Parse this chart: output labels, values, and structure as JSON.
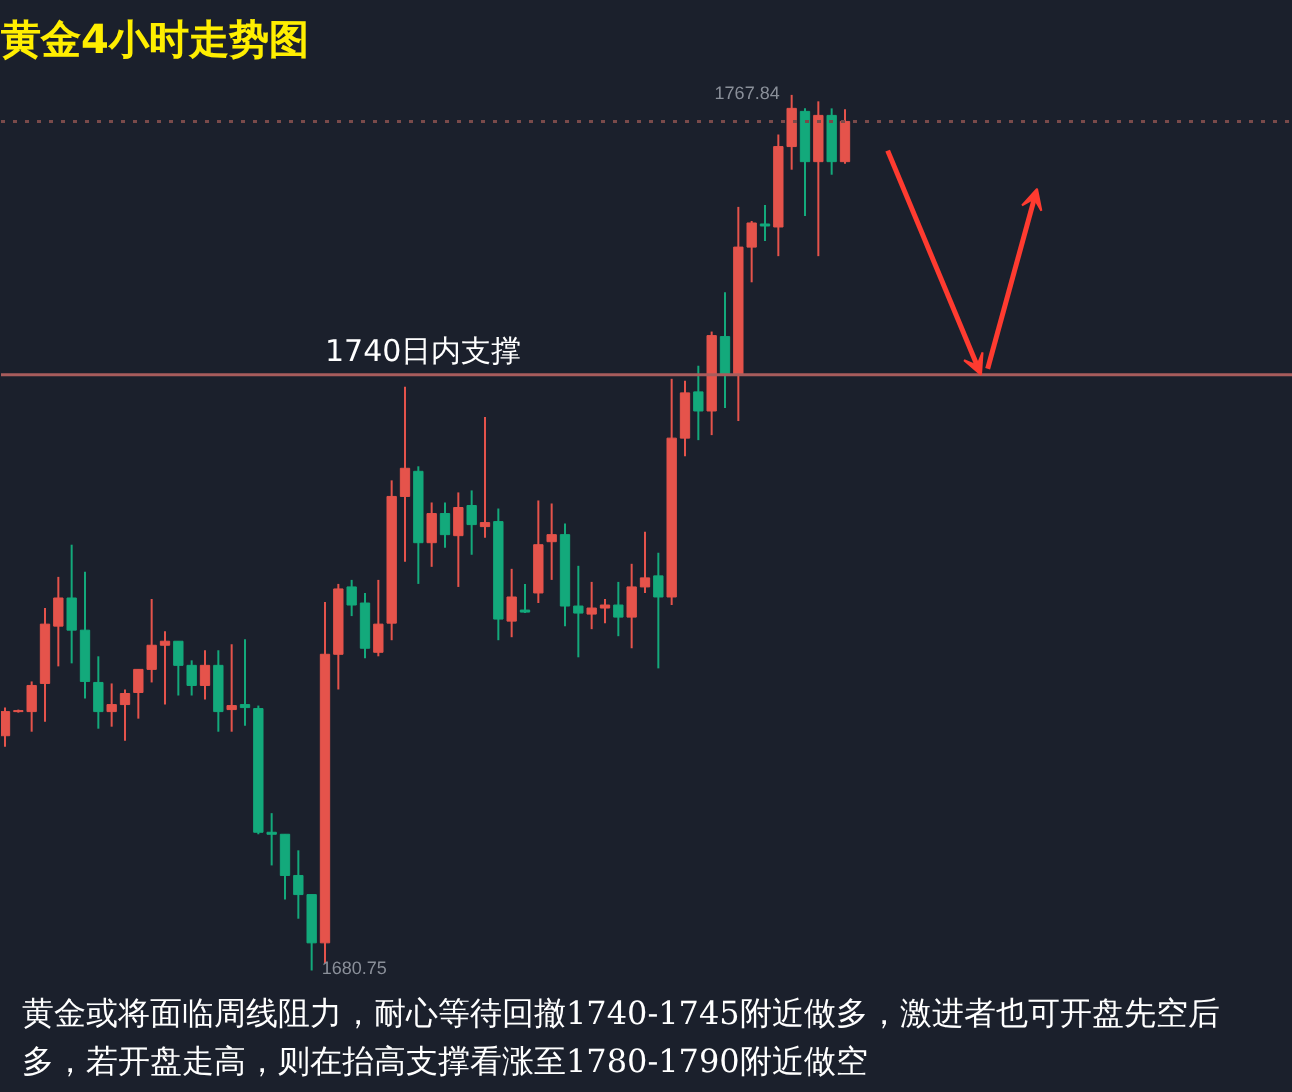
{
  "chart_data": {
    "type": "candlestick",
    "title": "黄金4小时走势图",
    "categories": [
      null,
      null,
      null,
      null,
      null,
      null,
      null,
      null,
      null,
      null,
      null,
      null,
      null,
      null,
      null,
      null,
      null,
      null,
      null,
      null,
      null,
      null,
      null,
      null,
      null,
      null,
      null,
      null,
      null,
      null,
      null,
      null,
      null,
      null,
      null,
      null,
      null,
      null,
      null,
      null,
      null,
      null,
      null,
      null,
      null,
      null,
      null,
      null,
      null,
      null,
      null,
      null,
      null,
      null,
      null,
      null,
      null,
      null,
      null,
      null,
      null,
      null,
      null,
      null
    ],
    "ohlc": [
      [
        1704.1,
        1706.9,
        1703.0,
        1706.5
      ],
      [
        1706.5,
        1706.7,
        1706.4,
        1706.6
      ],
      [
        1706.5,
        1709.5,
        1704.5,
        1709.1
      ],
      [
        1709.3,
        1716.8,
        1705.5,
        1715.2
      ],
      [
        1715.0,
        1719.9,
        1711.0,
        1717.8
      ],
      [
        1717.8,
        1723.1,
        1711.3,
        1714.6
      ],
      [
        1714.6,
        1720.4,
        1707.8,
        1709.5
      ],
      [
        1709.4,
        1712.0,
        1704.8,
        1706.5
      ],
      [
        1706.5,
        1709.3,
        1705.0,
        1707.2
      ],
      [
        1707.2,
        1708.7,
        1703.6,
        1708.3
      ],
      [
        1708.4,
        1710.7,
        1705.8,
        1710.7
      ],
      [
        1710.7,
        1717.7,
        1709.4,
        1713.1
      ],
      [
        1713.1,
        1714.5,
        1707.2,
        1713.5
      ],
      [
        1713.5,
        1713.5,
        1708.1,
        1711.1
      ],
      [
        1711.1,
        1711.6,
        1708.1,
        1709.1
      ],
      [
        1709.1,
        1712.6,
        1707.7,
        1711.1
      ],
      [
        1711.1,
        1712.6,
        1704.5,
        1706.5
      ],
      [
        1706.7,
        1713.2,
        1704.5,
        1707.1
      ],
      [
        1707.2,
        1713.7,
        1705.1,
        1706.9
      ],
      [
        1706.8,
        1707.1,
        1694.3,
        1694.5
      ],
      [
        1694.5,
        1696.4,
        1691.2,
        1694.3
      ],
      [
        1694.3,
        1694.3,
        1687.8,
        1690.2
      ],
      [
        1690.2,
        1692.7,
        1685.9,
        1688.3
      ],
      [
        1688.3,
        1688.3,
        1680.75,
        1683.5
      ],
      [
        1683.5,
        1717.4,
        1681.5,
        1712.2
      ],
      [
        1712.2,
        1719.2,
        1708.7,
        1718.7
      ],
      [
        1718.9,
        1719.6,
        1716.0,
        1717.1
      ],
      [
        1717.3,
        1718.3,
        1711.8,
        1712.8
      ],
      [
        1712.4,
        1719.6,
        1712.0,
        1715.2
      ],
      [
        1715.3,
        1729.5,
        1713.6,
        1727.9
      ],
      [
        1727.9,
        1738.8,
        1721.4,
        1730.7
      ],
      [
        1730.4,
        1730.9,
        1719.2,
        1723.3
      ],
      [
        1723.3,
        1727.3,
        1720.9,
        1726.2
      ],
      [
        1726.2,
        1727.3,
        1722.8,
        1724.1
      ],
      [
        1724.0,
        1728.3,
        1718.9,
        1726.8
      ],
      [
        1727.0,
        1728.5,
        1722.1,
        1725.1
      ],
      [
        1724.9,
        1735.8,
        1723.8,
        1725.3
      ],
      [
        1725.4,
        1726.7,
        1713.6,
        1715.7
      ],
      [
        1715.5,
        1720.7,
        1713.9,
        1717.9
      ],
      [
        1716.6,
        1719.2,
        1716.3,
        1716.4
      ],
      [
        1718.3,
        1727.5,
        1717.3,
        1723.1
      ],
      [
        1723.4,
        1727.2,
        1719.6,
        1724.1
      ],
      [
        1724.1,
        1725.2,
        1715.0,
        1717.0
      ],
      [
        1717.0,
        1721.0,
        1711.9,
        1716.3
      ],
      [
        1716.2,
        1719.4,
        1714.7,
        1716.8
      ],
      [
        1716.8,
        1717.7,
        1715.3,
        1717.1
      ],
      [
        1717.1,
        1719.4,
        1714.0,
        1715.9
      ],
      [
        1715.9,
        1721.2,
        1712.8,
        1718.9
      ],
      [
        1718.9,
        1724.4,
        1718.3,
        1719.8
      ],
      [
        1720.0,
        1722.3,
        1710.8,
        1717.9
      ],
      [
        1717.9,
        1739.6,
        1717.1,
        1733.7
      ],
      [
        1733.7,
        1739.4,
        1731.9,
        1738.2
      ],
      [
        1738.3,
        1740.9,
        1733.5,
        1736.4
      ],
      [
        1736.4,
        1744.3,
        1734.0,
        1743.9
      ],
      [
        1743.8,
        1748.2,
        1736.7,
        1740.0
      ],
      [
        1740.0,
        1756.7,
        1735.4,
        1752.7
      ],
      [
        1752.7,
        1755.3,
        1749.2,
        1755.1
      ],
      [
        1755.0,
        1756.9,
        1753.3,
        1754.8
      ],
      [
        1754.7,
        1763.9,
        1751.8,
        1762.7
      ],
      [
        1762.7,
        1767.84,
        1760.4,
        1766.5
      ],
      [
        1766.2,
        1766.5,
        1755.8,
        1761.2
      ],
      [
        1761.2,
        1767.2,
        1751.8,
        1765.8
      ],
      [
        1765.8,
        1766.5,
        1759.9,
        1761.2
      ],
      [
        1761.2,
        1766.4,
        1761.0,
        1765.2
      ]
    ],
    "colors": [
      "#e5534b",
      "#e5534b",
      "#e5534b",
      "#e5534b",
      "#e5534b",
      "#13a97b",
      "#13a97b",
      "#13a97b",
      "#e5534b",
      "#e5534b",
      "#e5534b",
      "#e5534b",
      "#e5534b",
      "#13a97b",
      "#13a97b",
      "#e5534b",
      "#13a97b",
      "#e5534b",
      "#13a97b",
      "#13a97b",
      "#13a97b",
      "#13a97b",
      "#13a97b",
      "#13a97b",
      "#e5534b",
      "#e5534b",
      "#13a97b",
      "#13a97b",
      "#e5534b",
      "#e5534b",
      "#e5534b",
      "#13a97b",
      "#e5534b",
      "#13a97b",
      "#e5534b",
      "#13a97b",
      "#e5534b",
      "#13a97b",
      "#e5534b",
      "#13a97b",
      "#e5534b",
      "#e5534b",
      "#13a97b",
      "#13a97b",
      "#e5534b",
      "#e5534b",
      "#13a97b",
      "#e5534b",
      "#e5534b",
      "#13a97b",
      "#e5534b",
      "#e5534b",
      "#13a97b",
      "#e5534b",
      "#13a97b",
      "#e5534b",
      "#e5534b",
      "#13a97b",
      "#e5534b",
      "#e5534b",
      "#13a97b",
      "#e5534b",
      "#13a97b",
      "#e5534b"
    ],
    "ref_lines": [
      {
        "axis": "y",
        "value": 1740,
        "label": "1740日内支撑",
        "color": "#a85c5c",
        "line_style": "solid"
      },
      {
        "axis": "y",
        "value": 1765.2,
        "color": "#7a4a4a",
        "line_style": "dotted"
      }
    ],
    "annotations": [
      "1767.84",
      "1680.75",
      "黄金或将面临周线阻力，耐心等待回撤1740-1745附近做多，激进者也可开盘先空后多，若开盘走高，则在抬高支撑看涨至1780-1790附近做空"
    ],
    "grid": false,
    "tick_labels": false
  }
}
